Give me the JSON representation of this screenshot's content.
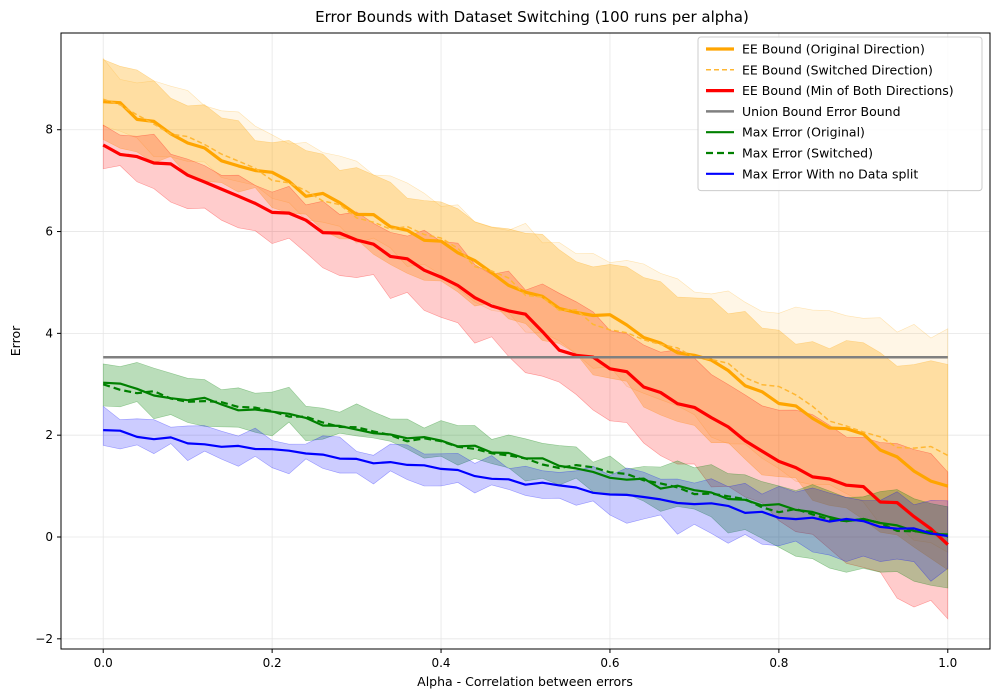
{
  "chart_data": {
    "type": "line",
    "title": "Error Bounds with Dataset Switching (100 runs per alpha)",
    "xlabel": "Alpha - Correlation between errors",
    "ylabel": "Error",
    "xlim": [
      -0.05,
      1.05
    ],
    "ylim": [
      -2.2,
      9.9
    ],
    "xticks": [
      0.0,
      0.2,
      0.4,
      0.6,
      0.8,
      1.0
    ],
    "yticks": [
      -2,
      0,
      2,
      4,
      6,
      8
    ],
    "xtick_labels": [
      "0.0",
      "0.2",
      "0.4",
      "0.6",
      "0.8",
      "1.0"
    ],
    "ytick_labels": [
      "−2",
      "0",
      "2",
      "4",
      "6",
      "8"
    ],
    "grid": true,
    "legend_position": "top-right",
    "alpha_range": [
      0.0,
      1.0
    ],
    "points_per_series": 51,
    "series": [
      {
        "name": "EE Bound (Original Direction)",
        "color": "#ffa500",
        "style": "solid",
        "width": 3.2,
        "knots": [
          [
            0.0,
            8.55
          ],
          [
            0.05,
            8.25
          ],
          [
            0.1,
            7.75
          ],
          [
            0.2,
            7.05
          ],
          [
            0.3,
            6.35
          ],
          [
            0.4,
            5.75
          ],
          [
            0.5,
            4.85
          ],
          [
            0.6,
            4.25
          ],
          [
            0.7,
            3.55
          ],
          [
            0.8,
            2.6
          ],
          [
            0.9,
            1.95
          ],
          [
            1.0,
            1.0
          ]
        ],
        "band": {
          "lower": [
            [
              0.0,
              7.9
            ],
            [
              0.2,
              6.6
            ],
            [
              0.4,
              5.0
            ],
            [
              0.6,
              3.1
            ],
            [
              0.8,
              1.2
            ],
            [
              1.0,
              -0.5
            ]
          ],
          "upper": [
            [
              0.0,
              9.3
            ],
            [
              0.2,
              7.8
            ],
            [
              0.4,
              6.5
            ],
            [
              0.6,
              5.3
            ],
            [
              0.8,
              4.0
            ],
            [
              1.0,
              3.3
            ]
          ]
        }
      },
      {
        "name": "EE Bound (Switched Direction)",
        "color": "#ffb733",
        "style": "dashed",
        "width": 1.5,
        "knots": [
          [
            0.0,
            8.6
          ],
          [
            0.05,
            8.2
          ],
          [
            0.1,
            7.8
          ],
          [
            0.2,
            7.1
          ],
          [
            0.3,
            6.3
          ],
          [
            0.4,
            5.8
          ],
          [
            0.5,
            4.8
          ],
          [
            0.6,
            4.1
          ],
          [
            0.7,
            3.6
          ],
          [
            0.8,
            2.9
          ],
          [
            0.9,
            2.0
          ],
          [
            1.0,
            1.6
          ]
        ],
        "band": {
          "lower": [
            [
              0.0,
              8.0
            ],
            [
              0.2,
              6.7
            ],
            [
              0.4,
              5.1
            ],
            [
              0.6,
              3.2
            ],
            [
              0.8,
              1.4
            ],
            [
              1.0,
              -0.3
            ]
          ],
          "upper": [
            [
              0.0,
              9.3
            ],
            [
              0.2,
              7.9
            ],
            [
              0.4,
              6.6
            ],
            [
              0.6,
              5.4
            ],
            [
              0.8,
              4.4
            ],
            [
              1.0,
              4.0
            ]
          ]
        }
      },
      {
        "name": "EE Bound (Min of Both Directions)",
        "color": "#ff0000",
        "style": "solid",
        "width": 3.2,
        "knots": [
          [
            0.0,
            7.7
          ],
          [
            0.05,
            7.45
          ],
          [
            0.1,
            7.1
          ],
          [
            0.2,
            6.4
          ],
          [
            0.3,
            5.8
          ],
          [
            0.4,
            5.1
          ],
          [
            0.5,
            4.3
          ],
          [
            0.55,
            3.6
          ],
          [
            0.6,
            3.4
          ],
          [
            0.7,
            2.5
          ],
          [
            0.8,
            1.5
          ],
          [
            0.9,
            0.9
          ],
          [
            0.95,
            0.5
          ],
          [
            1.0,
            -0.15
          ]
        ],
        "band": {
          "lower": [
            [
              0.0,
              7.3
            ],
            [
              0.2,
              5.9
            ],
            [
              0.4,
              4.4
            ],
            [
              0.6,
              2.3
            ],
            [
              0.8,
              0.3
            ],
            [
              1.0,
              -1.6
            ]
          ],
          "upper": [
            [
              0.0,
              8.1
            ],
            [
              0.2,
              6.9
            ],
            [
              0.4,
              5.8
            ],
            [
              0.6,
              4.2
            ],
            [
              0.8,
              2.5
            ],
            [
              1.0,
              1.4
            ]
          ]
        }
      },
      {
        "name": "Union Bound Error Bound",
        "color": "#808080",
        "style": "solid",
        "width": 2.5,
        "knots": [
          [
            0.0,
            3.53
          ],
          [
            1.0,
            3.53
          ]
        ]
      },
      {
        "name": "Max Error (Original)",
        "color": "#008000",
        "style": "solid",
        "width": 2.2,
        "knots": [
          [
            0.0,
            3.03
          ],
          [
            0.1,
            2.72
          ],
          [
            0.2,
            2.45
          ],
          [
            0.3,
            2.13
          ],
          [
            0.4,
            1.85
          ],
          [
            0.5,
            1.55
          ],
          [
            0.6,
            1.2
          ],
          [
            0.7,
            0.9
          ],
          [
            0.8,
            0.6
          ],
          [
            0.9,
            0.3
          ],
          [
            1.0,
            0.05
          ]
        ],
        "band": {
          "lower": [
            [
              0.0,
              2.6
            ],
            [
              0.2,
              2.15
            ],
            [
              0.4,
              1.55
            ],
            [
              0.6,
              0.95
            ],
            [
              0.8,
              -0.2
            ],
            [
              1.0,
              -1.0
            ]
          ],
          "upper": [
            [
              0.0,
              3.4
            ],
            [
              0.2,
              2.85
            ],
            [
              0.4,
              2.25
            ],
            [
              0.6,
              1.55
            ],
            [
              0.8,
              1.1
            ],
            [
              1.0,
              0.7
            ]
          ]
        }
      },
      {
        "name": "Max Error (Switched)",
        "color": "#008000",
        "style": "dashed",
        "width": 2.2,
        "knots": [
          [
            0.0,
            3.0
          ],
          [
            0.1,
            2.7
          ],
          [
            0.2,
            2.42
          ],
          [
            0.3,
            2.13
          ],
          [
            0.4,
            1.82
          ],
          [
            0.5,
            1.5
          ],
          [
            0.6,
            1.25
          ],
          [
            0.7,
            0.88
          ],
          [
            0.8,
            0.55
          ],
          [
            0.9,
            0.3
          ],
          [
            1.0,
            0.0
          ]
        ]
      },
      {
        "name": "Max Error With no Data split",
        "color": "#0000ff",
        "style": "solid",
        "width": 2.2,
        "knots": [
          [
            0.0,
            2.1
          ],
          [
            0.1,
            1.88
          ],
          [
            0.2,
            1.7
          ],
          [
            0.3,
            1.5
          ],
          [
            0.4,
            1.33
          ],
          [
            0.5,
            1.07
          ],
          [
            0.6,
            0.85
          ],
          [
            0.7,
            0.67
          ],
          [
            0.8,
            0.4
          ],
          [
            0.9,
            0.28
          ],
          [
            1.0,
            0.02
          ]
        ],
        "band": {
          "lower": [
            [
              0.0,
              1.85
            ],
            [
              0.2,
              1.45
            ],
            [
              0.4,
              1.0
            ],
            [
              0.6,
              0.5
            ],
            [
              0.8,
              -0.2
            ],
            [
              1.0,
              -0.75
            ]
          ],
          "upper": [
            [
              0.0,
              2.4
            ],
            [
              0.2,
              1.95
            ],
            [
              0.4,
              1.6
            ],
            [
              0.6,
              1.25
            ],
            [
              0.8,
              0.95
            ],
            [
              1.0,
              0.75
            ]
          ]
        }
      }
    ]
  }
}
